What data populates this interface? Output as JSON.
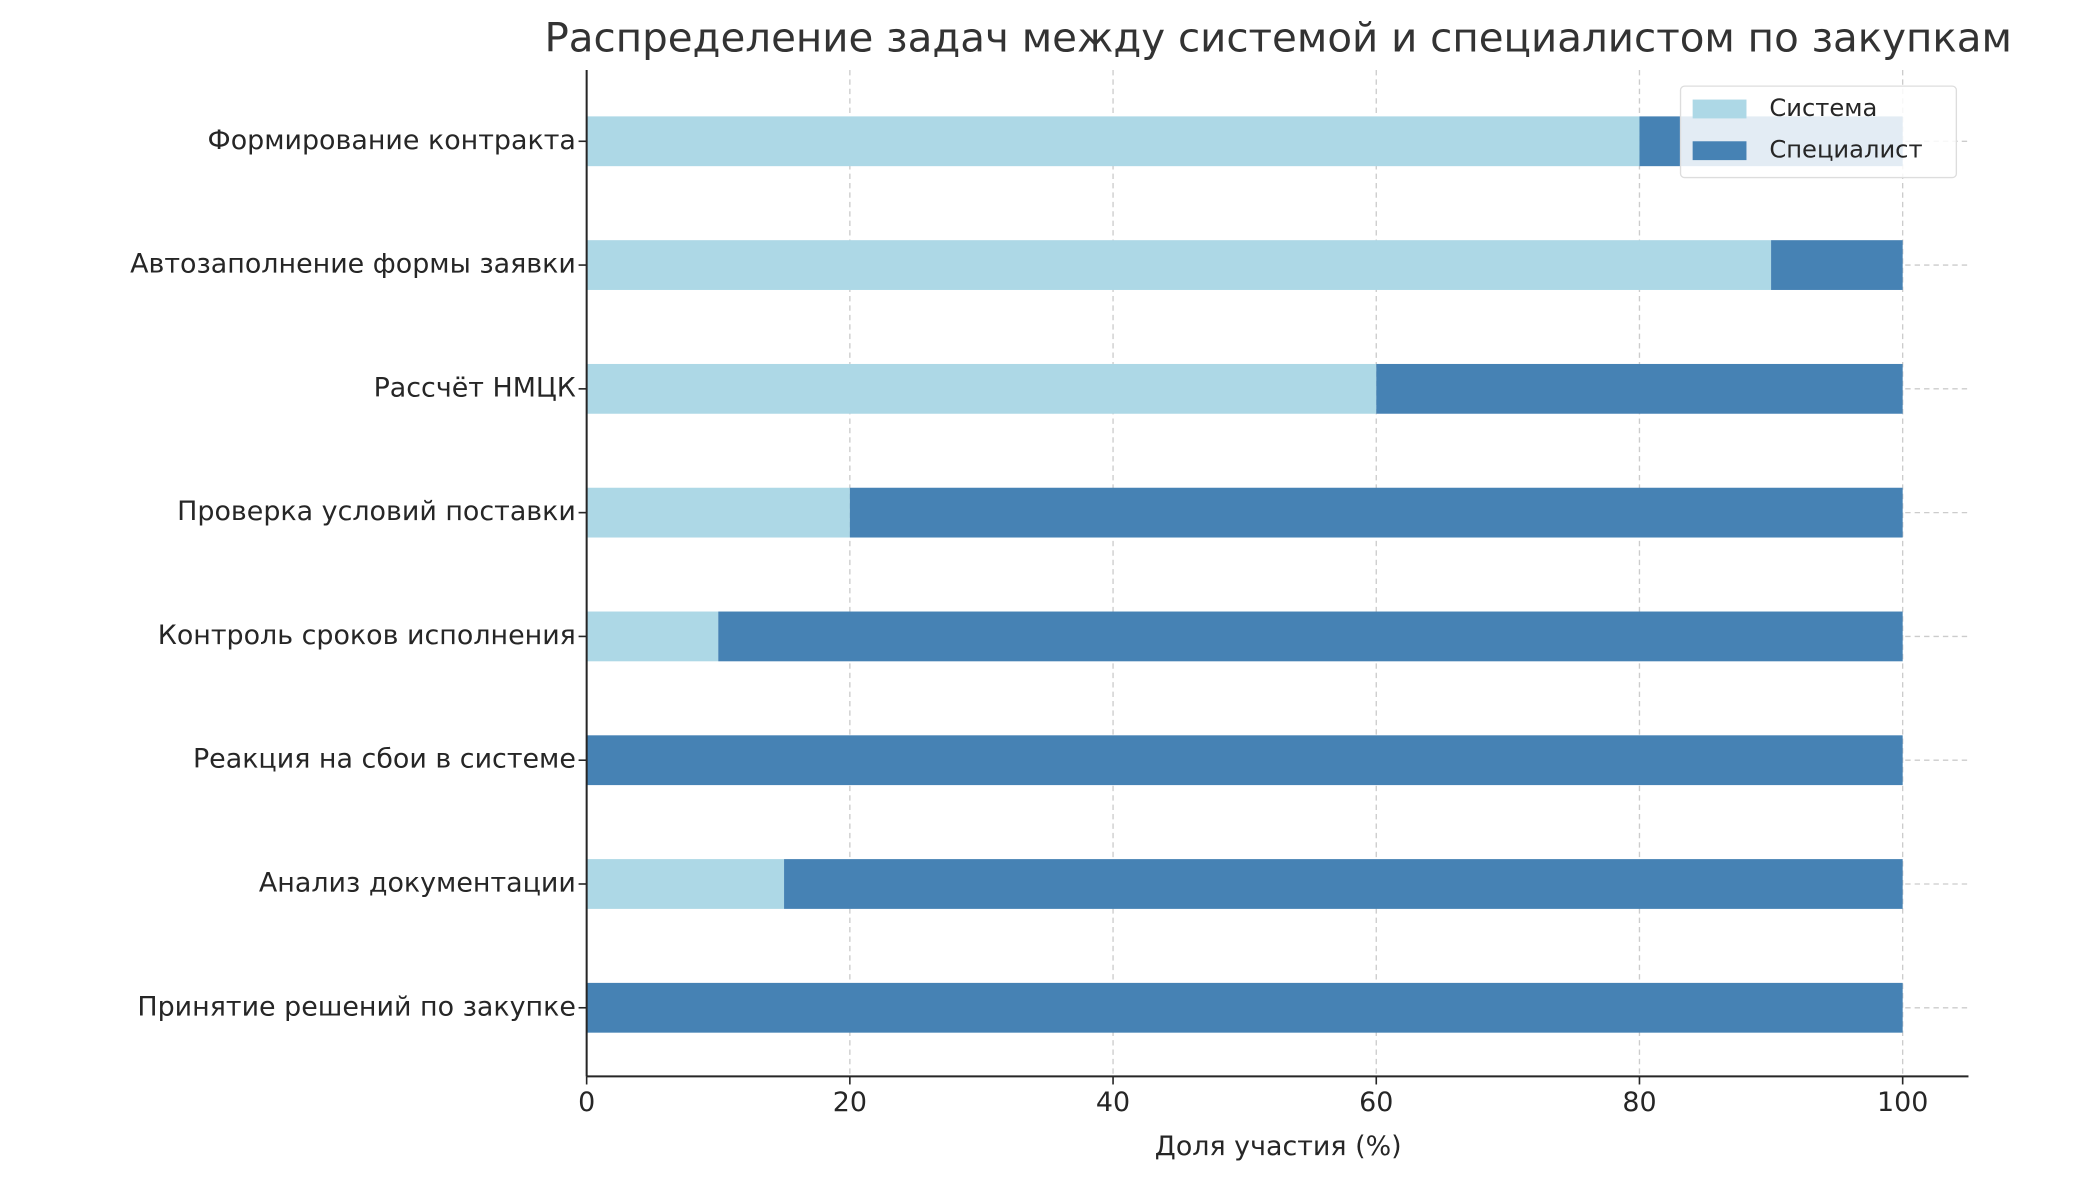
{
  "chart_data": {
    "type": "stacked-hbar",
    "title": "Распределение задач между системой и специалистом по закупкам",
    "xlabel": "Доля участия (%)",
    "categories": [
      "Формирование контракта",
      "Автозаполнение формы заявки",
      "Рассчёт НМЦК",
      "Проверка условий поставки",
      "Контроль сроков исполнения",
      "Реакция на сбои в системе",
      "Анализ документации",
      "Принятие решений по закупке"
    ],
    "series": [
      {
        "name": "Система",
        "color": "#add8e6",
        "values": [
          80,
          90,
          60,
          20,
          10,
          0,
          15,
          0
        ]
      },
      {
        "name": "Специалист",
        "color": "#4682b4",
        "values": [
          20,
          10,
          40,
          80,
          90,
          100,
          85,
          100
        ]
      }
    ],
    "xlim": [
      0,
      105
    ],
    "xticks": [
      0,
      20,
      40,
      60,
      80,
      100
    ],
    "grid": true,
    "legend": "upper right"
  }
}
